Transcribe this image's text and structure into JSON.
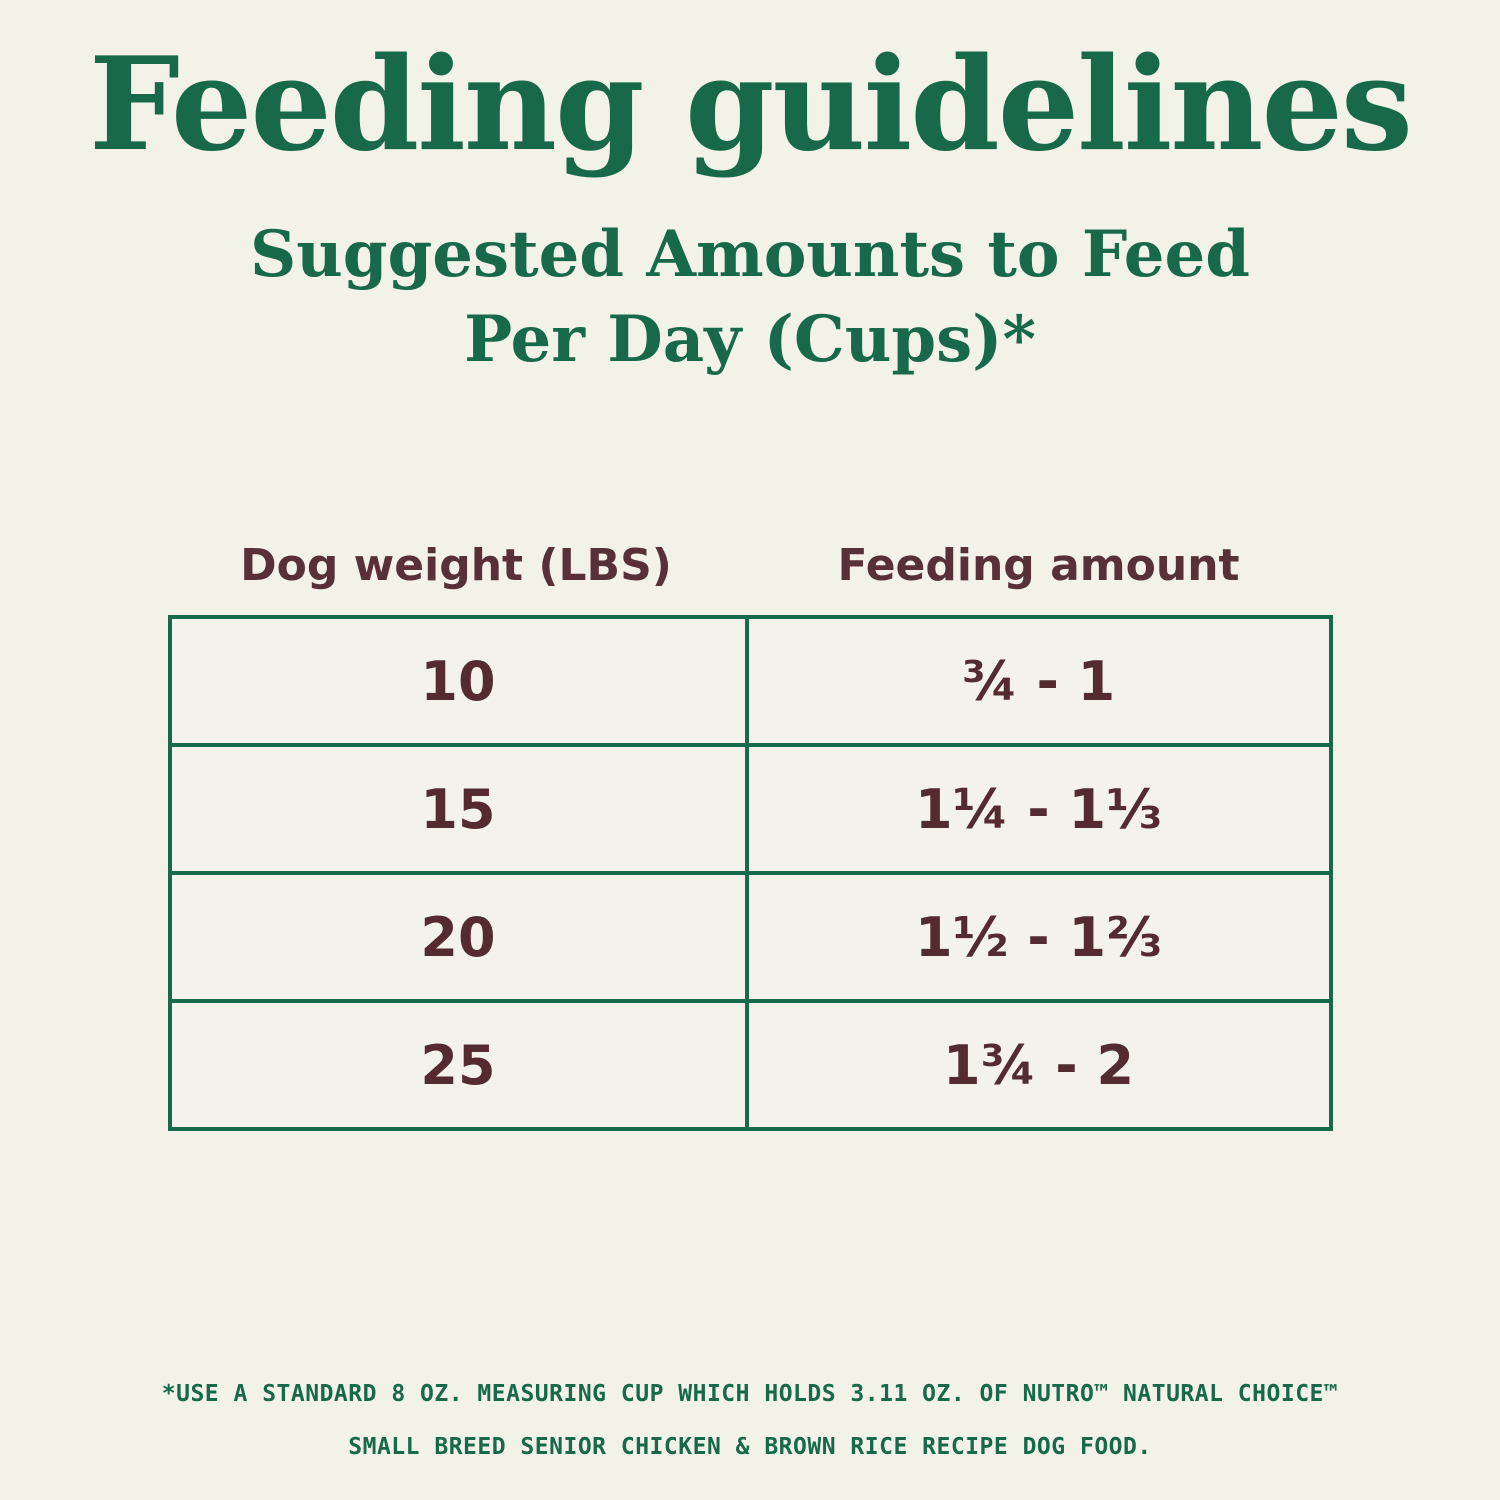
{
  "title": "Feeding guidelines",
  "subtitle_line1": "Suggested Amounts to Feed",
  "subtitle_line2": "Per Day (Cups)*",
  "table": {
    "columns": [
      "Dog weight (LBS)",
      "Feeding amount"
    ],
    "rows": [
      {
        "weight": "10",
        "amount": "¾ - 1"
      },
      {
        "weight": "15",
        "amount": "1¼ - 1⅓"
      },
      {
        "weight": "20",
        "amount": "1½ - 1⅔"
      },
      {
        "weight": "25",
        "amount": "1¾ - 2"
      }
    ]
  },
  "footnote_line1": "*USE A STANDARD 8 OZ. MEASURING CUP WHICH HOLDS 3.11 OZ. OF NUTRO™ NATURAL CHOICE™",
  "footnote_line2": "SMALL BREED SENIOR CHICKEN & BROWN RICE RECIPE DOG FOOD.",
  "colors": {
    "background": "#F2F2E9",
    "green": "#17694A",
    "maroon": "#552B30",
    "header_maroon": "#5A3038",
    "table_border": "#17694A"
  }
}
